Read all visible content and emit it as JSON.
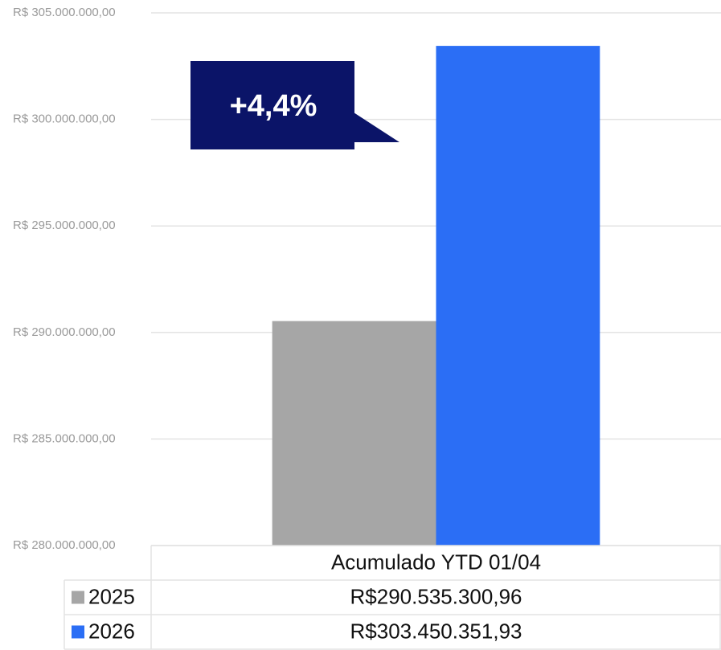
{
  "chart_data": {
    "type": "bar",
    "annotation": "+4,4%",
    "categories": [
      "Acumulado YTD 01/04"
    ],
    "series": [
      {
        "name": "2025",
        "color": "#a6a6a6",
        "values": [
          290535300.96
        ],
        "value_labels": [
          "R$290.535.300,96"
        ]
      },
      {
        "name": "2026",
        "color": "#2b6ef5",
        "values": [
          303450351.93
        ],
        "value_labels": [
          "R$303.450.351,93"
        ]
      }
    ],
    "ylim": [
      280000000,
      305000000
    ],
    "yticks": [
      {
        "value": 280000000,
        "label": "R$ 280.000.000,00"
      },
      {
        "value": 285000000,
        "label": "R$ 285.000.000,00"
      },
      {
        "value": 290000000,
        "label": "R$ 290.000.000,00"
      },
      {
        "value": 295000000,
        "label": "R$ 295.000.000,00"
      },
      {
        "value": 300000000,
        "label": "R$ 300.000.000,00"
      },
      {
        "value": 305000000,
        "label": "R$ 305.000.000,00"
      }
    ],
    "grid": true
  }
}
